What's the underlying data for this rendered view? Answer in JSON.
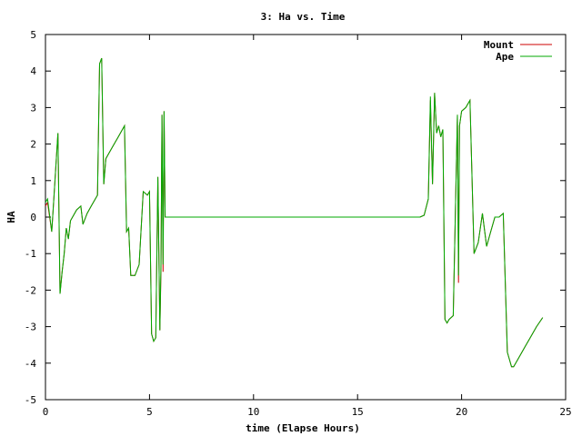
{
  "chart_data": {
    "type": "line",
    "title": "3: Ha vs. Time",
    "xlabel": "time (Elapse Hours)",
    "ylabel": "HA",
    "xlim": [
      0,
      25
    ],
    "ylim": [
      -5,
      5
    ],
    "xticks": [
      0,
      5,
      10,
      15,
      20,
      25
    ],
    "yticks": [
      -5,
      -4,
      -3,
      -2,
      -1,
      0,
      1,
      2,
      3,
      4,
      5
    ],
    "grid": false,
    "legend_position": "top-right",
    "series": [
      {
        "name": "Mount",
        "color": "#cc0000",
        "x": [
          0,
          0.1,
          0.3,
          0.4,
          0.6,
          0.7,
          0.8,
          0.9,
          1.0,
          1.1,
          1.2,
          1.5,
          1.7,
          1.8,
          2.0,
          2.2,
          2.4,
          2.5,
          2.6,
          2.7,
          2.8,
          2.9,
          3.0,
          3.2,
          3.5,
          3.8,
          3.9,
          4.0,
          4.1,
          4.3,
          4.5,
          4.7,
          4.9,
          5.0,
          5.1,
          5.2,
          5.3,
          5.4,
          5.5,
          5.55,
          5.6,
          5.65,
          5.7,
          5.75,
          5.8,
          5.85,
          5.9,
          6.0,
          18.0,
          18.2,
          18.4,
          18.5,
          18.6,
          18.7,
          18.8,
          18.9,
          19.0,
          19.1,
          19.2,
          19.3,
          19.4,
          19.6,
          19.8,
          19.85,
          19.9,
          20.0,
          20.2,
          20.4,
          20.6,
          20.8,
          21.0,
          21.2,
          21.4,
          21.6,
          21.8,
          22.0,
          22.2,
          22.4,
          22.5,
          22.7,
          23.0,
          23.3,
          23.6,
          23.9
        ],
        "values": [
          0.3,
          0.4,
          -0.4,
          0.5,
          2.3,
          -2.1,
          -1.5,
          -1.0,
          -0.3,
          -0.6,
          -0.1,
          0.2,
          0.3,
          -0.2,
          0.1,
          0.3,
          0.5,
          0.6,
          4.2,
          4.35,
          0.9,
          1.6,
          1.7,
          1.9,
          2.2,
          2.5,
          -0.4,
          -0.3,
          -1.6,
          -1.6,
          -1.3,
          0.7,
          0.6,
          0.7,
          -3.2,
          -3.4,
          -3.3,
          1.1,
          -3.1,
          -1.5,
          2.8,
          -1.5,
          2.9,
          0.0,
          0.0,
          0.0,
          0.0,
          0.0,
          0.0,
          0.05,
          0.5,
          3.2,
          0.9,
          3.4,
          2.3,
          2.5,
          2.2,
          2.4,
          -2.8,
          -2.9,
          -2.8,
          -2.7,
          2.8,
          -1.8,
          2.5,
          2.9,
          3.0,
          3.2,
          -1.0,
          -0.7,
          0.1,
          -0.8,
          -0.4,
          0.0,
          0.0,
          0.1,
          -3.7,
          -4.1,
          -4.1,
          -3.9,
          -3.6,
          -3.3,
          -3.0,
          -2.75
        ]
      },
      {
        "name": "Ape",
        "color": "#00aa00",
        "x": [
          0,
          0.1,
          0.3,
          0.4,
          0.6,
          0.7,
          0.8,
          0.9,
          1.0,
          1.1,
          1.2,
          1.5,
          1.7,
          1.8,
          2.0,
          2.2,
          2.4,
          2.5,
          2.6,
          2.7,
          2.8,
          2.9,
          3.0,
          3.2,
          3.5,
          3.8,
          3.9,
          4.0,
          4.1,
          4.3,
          4.5,
          4.7,
          4.9,
          5.0,
          5.1,
          5.2,
          5.3,
          5.4,
          5.5,
          5.55,
          5.6,
          5.65,
          5.7,
          5.75,
          5.8,
          5.85,
          5.9,
          6.0,
          18.0,
          18.2,
          18.4,
          18.5,
          18.6,
          18.7,
          18.8,
          18.9,
          19.0,
          19.1,
          19.2,
          19.3,
          19.4,
          19.6,
          19.8,
          19.85,
          19.9,
          20.0,
          20.2,
          20.4,
          20.6,
          20.8,
          21.0,
          21.2,
          21.4,
          21.6,
          21.8,
          22.0,
          22.2,
          22.4,
          22.5,
          22.7,
          23.0,
          23.3,
          23.6,
          23.9
        ],
        "values": [
          0.4,
          0.5,
          -0.4,
          0.5,
          2.3,
          -2.1,
          -1.5,
          -1.0,
          -0.3,
          -0.6,
          -0.1,
          0.2,
          0.3,
          -0.2,
          0.1,
          0.3,
          0.5,
          0.6,
          4.2,
          4.35,
          0.9,
          1.6,
          1.7,
          1.9,
          2.2,
          2.5,
          -0.4,
          -0.3,
          -1.6,
          -1.6,
          -1.3,
          0.7,
          0.6,
          0.7,
          -3.2,
          -3.4,
          -3.3,
          1.1,
          -3.1,
          -1.3,
          2.8,
          -1.3,
          2.9,
          0.0,
          0.0,
          0.0,
          0.0,
          0.0,
          0.0,
          0.05,
          0.5,
          3.3,
          0.9,
          3.4,
          2.3,
          2.5,
          2.2,
          2.4,
          -2.8,
          -2.9,
          -2.8,
          -2.7,
          2.8,
          -1.6,
          2.5,
          2.9,
          3.0,
          3.2,
          -1.0,
          -0.7,
          0.1,
          -0.8,
          -0.4,
          0.0,
          0.0,
          0.1,
          -3.7,
          -4.1,
          -4.1,
          -3.9,
          -3.6,
          -3.3,
          -3.0,
          -2.75
        ]
      }
    ]
  }
}
